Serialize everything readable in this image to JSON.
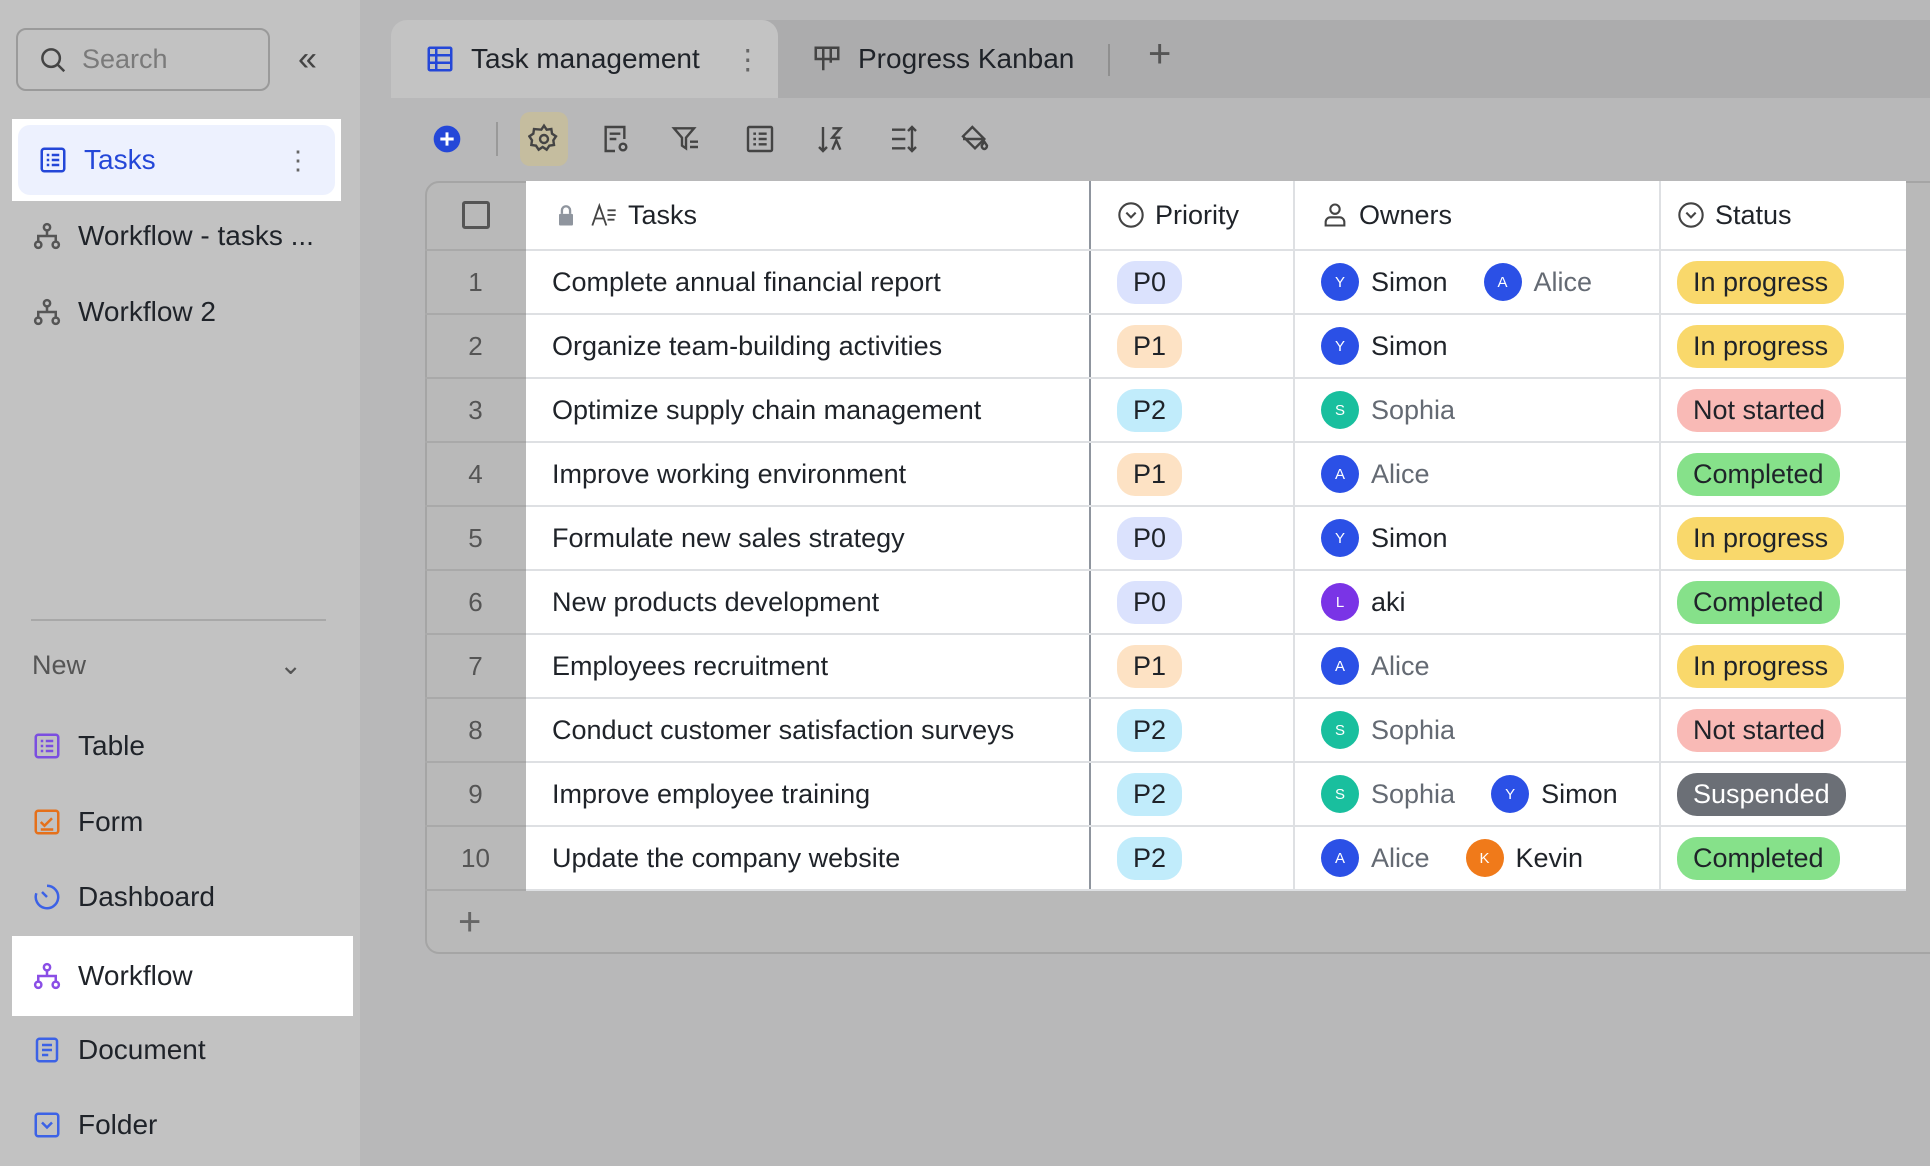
{
  "sidebar": {
    "search_placeholder": "Search",
    "items": [
      {
        "label": "Tasks",
        "icon": "table-icon"
      },
      {
        "label": "Workflow - tasks ...",
        "icon": "workflow-icon"
      },
      {
        "label": "Workflow 2",
        "icon": "workflow-icon"
      }
    ],
    "new_label": "New",
    "new_items": [
      {
        "label": "Table",
        "icon": "table-icon",
        "color": "#7b4ee0"
      },
      {
        "label": "Form",
        "icon": "form-icon",
        "color": "#e5701a"
      },
      {
        "label": "Dashboard",
        "icon": "dashboard-icon",
        "color": "#3c62e6"
      },
      {
        "label": "Workflow",
        "icon": "workflow-icon",
        "color": "#8a4ee6"
      },
      {
        "label": "Document",
        "icon": "document-icon",
        "color": "#3c62e6"
      },
      {
        "label": "Folder",
        "icon": "folder-icon",
        "color": "#3c62e6"
      }
    ]
  },
  "tabs": [
    {
      "label": "Task management",
      "active": true
    },
    {
      "label": "Progress Kanban",
      "active": false
    }
  ],
  "table": {
    "columns": [
      "Tasks",
      "Priority",
      "Owners",
      "Status"
    ],
    "rows": [
      {
        "n": "1",
        "task": "Complete annual financial report",
        "priority": "P0",
        "owners": [
          {
            "name": "Simon",
            "initial": "Y",
            "color": "#2b50e6"
          },
          {
            "name": "Alice",
            "initial": "A",
            "color": "#2b50e6",
            "muted": true
          }
        ],
        "status": "In progress"
      },
      {
        "n": "2",
        "task": "Organize team-building activities",
        "priority": "P1",
        "owners": [
          {
            "name": "Simon",
            "initial": "Y",
            "color": "#2b50e6"
          }
        ],
        "status": "In progress"
      },
      {
        "n": "3",
        "task": "Optimize supply chain management",
        "priority": "P2",
        "owners": [
          {
            "name": "Sophia",
            "initial": "S",
            "color": "#19bf9e",
            "muted": true
          }
        ],
        "status": "Not started"
      },
      {
        "n": "4",
        "task": "Improve working environment",
        "priority": "P1",
        "owners": [
          {
            "name": "Alice",
            "initial": "A",
            "color": "#2b50e6",
            "muted": true
          }
        ],
        "status": "Completed"
      },
      {
        "n": "5",
        "task": "Formulate new sales strategy",
        "priority": "P0",
        "owners": [
          {
            "name": "Simon",
            "initial": "Y",
            "color": "#2b50e6"
          }
        ],
        "status": "In progress"
      },
      {
        "n": "6",
        "task": "New products development",
        "priority": "P0",
        "owners": [
          {
            "name": "aki",
            "initial": "L",
            "color": "#7a34e6"
          }
        ],
        "status": "Completed"
      },
      {
        "n": "7",
        "task": "Employees recruitment",
        "priority": "P1",
        "owners": [
          {
            "name": "Alice",
            "initial": "A",
            "color": "#2b50e6",
            "muted": true
          }
        ],
        "status": "In progress"
      },
      {
        "n": "8",
        "task": "Conduct customer satisfaction surveys",
        "priority": "P2",
        "owners": [
          {
            "name": "Sophia",
            "initial": "S",
            "color": "#19bf9e",
            "muted": true
          }
        ],
        "status": "Not started"
      },
      {
        "n": "9",
        "task": "Improve employee training",
        "priority": "P2",
        "owners": [
          {
            "name": "Sophia",
            "initial": "S",
            "color": "#19bf9e",
            "muted": true
          },
          {
            "name": "Simon",
            "initial": "Y",
            "color": "#2b50e6"
          }
        ],
        "status": "Suspended"
      },
      {
        "n": "10",
        "task": "Update the company website",
        "priority": "P2",
        "owners": [
          {
            "name": "Alice",
            "initial": "A",
            "color": "#2b50e6",
            "muted": true
          },
          {
            "name": "Kevin",
            "initial": "K",
            "color": "#f07a1a"
          }
        ],
        "status": "Completed"
      }
    ]
  },
  "colors": {
    "priority": {
      "P0": "#dbe2fd",
      "P1": "#fde2c4",
      "P2": "#c1ecfb"
    },
    "status": {
      "In progress": "#f9d86b",
      "Not started": "#f9bab6",
      "Completed": "#86e18a",
      "Suspended": "#6b6f76"
    },
    "accent": "#2447d8"
  }
}
